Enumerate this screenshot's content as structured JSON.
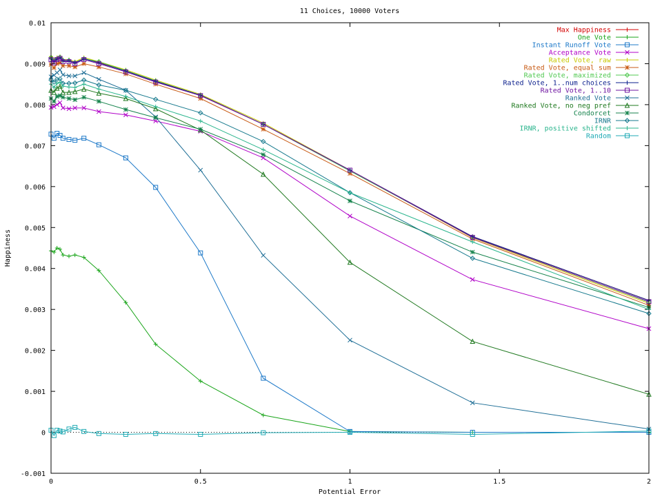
{
  "chart_data": {
    "type": "line",
    "title": "11 Choices, 10000 Voters",
    "xlabel": "Potential Error",
    "ylabel": "Happiness",
    "xlim": [
      0,
      2
    ],
    "ylim": [
      -0.001,
      0.01
    ],
    "x_ticks": [
      "0",
      "0.5",
      "1",
      "1.5",
      "2"
    ],
    "y_ticks": [
      "-0.001",
      "0",
      "0.001",
      "0.002",
      "0.003",
      "0.004",
      "0.005",
      "0.006",
      "0.007",
      "0.008",
      "0.009",
      "0.01"
    ],
    "grid": false,
    "legend_position": "top-right",
    "x": [
      0,
      0.01,
      0.02,
      0.03,
      0.04,
      0.06,
      0.08,
      0.11,
      0.16,
      0.25,
      0.35,
      0.5,
      0.71,
      1.0,
      1.41,
      2.0
    ],
    "series": [
      {
        "name": "Max Happiness",
        "color": "#d40000",
        "marker": "plus",
        "values": [
          0.00912,
          0.00905,
          0.00912,
          0.00915,
          0.00908,
          0.00908,
          0.00903,
          0.00912,
          0.00903,
          0.00882,
          0.00857,
          0.00822,
          0.00752,
          0.0064,
          0.00478,
          0.00322
        ]
      },
      {
        "name": "One Vote",
        "color": "#1aa51a",
        "marker": "plus",
        "values": [
          0.00443,
          0.0044,
          0.0045,
          0.00447,
          0.00433,
          0.0043,
          0.00433,
          0.00427,
          0.00395,
          0.00317,
          0.00215,
          0.00125,
          0.00042,
          2e-05,
          0.0,
          0.0
        ]
      },
      {
        "name": "Instant Runoff Vote",
        "color": "#1c78c8",
        "marker": "square",
        "values": [
          0.00728,
          0.00718,
          0.0073,
          0.00725,
          0.00718,
          0.00715,
          0.00713,
          0.00718,
          0.00702,
          0.0067,
          0.00598,
          0.00438,
          0.00132,
          2e-05,
          0.0,
          0.0
        ]
      },
      {
        "name": "Acceptance Vote",
        "color": "#b000c8",
        "marker": "x",
        "values": [
          0.00793,
          0.00795,
          0.008,
          0.00805,
          0.00792,
          0.0079,
          0.00792,
          0.00792,
          0.00783,
          0.00775,
          0.0076,
          0.00735,
          0.0067,
          0.00528,
          0.00373,
          0.00253
        ]
      },
      {
        "name": "Rated Vote, raw",
        "color": "#c8c800",
        "marker": "plus",
        "values": [
          0.00918,
          0.0091,
          0.00915,
          0.00918,
          0.0091,
          0.0091,
          0.00905,
          0.00915,
          0.00905,
          0.00885,
          0.0086,
          0.00825,
          0.00755,
          0.0064,
          0.00475,
          0.00315
        ]
      },
      {
        "name": "Rated Vote, equal sum",
        "color": "#c85a14",
        "marker": "star",
        "values": [
          0.00898,
          0.0089,
          0.009,
          0.00902,
          0.00895,
          0.00895,
          0.00892,
          0.009,
          0.00892,
          0.00875,
          0.0085,
          0.00815,
          0.0074,
          0.00632,
          0.00472,
          0.0031
        ]
      },
      {
        "name": "Rated Vote, maximized",
        "color": "#50c850",
        "marker": "diamond",
        "values": [
          0.00915,
          0.00907,
          0.00912,
          0.00916,
          0.00908,
          0.00908,
          0.00903,
          0.00912,
          0.00905,
          0.00883,
          0.00858,
          0.00823,
          0.00752,
          0.00638,
          0.00477,
          0.00318
        ]
      },
      {
        "name": "Rated Vote, 1..num choices",
        "color": "#0a1e8c",
        "marker": "plus",
        "values": [
          0.00912,
          0.00905,
          0.00912,
          0.00915,
          0.00907,
          0.00907,
          0.00902,
          0.00912,
          0.00902,
          0.00882,
          0.00857,
          0.00823,
          0.00752,
          0.0064,
          0.00478,
          0.00322
        ]
      },
      {
        "name": "Rated Vote, 1..10",
        "color": "#6e14a0",
        "marker": "square",
        "values": [
          0.0091,
          0.00902,
          0.0091,
          0.00913,
          0.00905,
          0.00905,
          0.009,
          0.0091,
          0.009,
          0.0088,
          0.00855,
          0.00822,
          0.00752,
          0.0064,
          0.00476,
          0.00319
        ]
      },
      {
        "name": "Ranked Vote",
        "color": "#1e6e96",
        "marker": "x",
        "values": [
          0.00868,
          0.00872,
          0.00878,
          0.00885,
          0.00873,
          0.0087,
          0.0087,
          0.00878,
          0.00862,
          0.00835,
          0.0077,
          0.0064,
          0.00432,
          0.00225,
          0.00072,
          8e-05
        ]
      },
      {
        "name": "Ranked Vote, no neg pref",
        "color": "#1e781e",
        "marker": "triangle",
        "values": [
          0.00835,
          0.0083,
          0.0084,
          0.00845,
          0.0083,
          0.0083,
          0.00832,
          0.00838,
          0.00828,
          0.00815,
          0.0079,
          0.00738,
          0.0063,
          0.00415,
          0.00222,
          0.00093
        ]
      },
      {
        "name": "Condorcet",
        "color": "#14824b",
        "marker": "star",
        "values": [
          0.00815,
          0.00808,
          0.0082,
          0.00822,
          0.00818,
          0.00815,
          0.00812,
          0.00818,
          0.00808,
          0.00788,
          0.00768,
          0.0074,
          0.00678,
          0.00565,
          0.0044,
          0.00305
        ]
      },
      {
        "name": "IRNR",
        "color": "#14788c",
        "marker": "diamond",
        "values": [
          0.0086,
          0.00855,
          0.00862,
          0.00863,
          0.00852,
          0.00852,
          0.00853,
          0.0086,
          0.00848,
          0.00835,
          0.00813,
          0.0078,
          0.0071,
          0.00585,
          0.00425,
          0.0029
        ]
      },
      {
        "name": "IRNR, positive shifted",
        "color": "#28b48c",
        "marker": "plus",
        "values": [
          0.0085,
          0.00842,
          0.00852,
          0.00855,
          0.00845,
          0.00843,
          0.00842,
          0.0085,
          0.00838,
          0.0082,
          0.00795,
          0.0076,
          0.0069,
          0.00585,
          0.00465,
          0.003
        ]
      },
      {
        "name": "Random",
        "color": "#1eaab4",
        "marker": "square",
        "values": [
          5e-05,
          -8e-05,
          5e-05,
          3e-05,
          1e-05,
          8e-05,
          0.00012,
          2e-05,
          -3e-05,
          -5e-05,
          -3e-05,
          -5e-05,
          -1e-05,
          0.0,
          -5e-05,
          3e-05
        ]
      }
    ]
  }
}
